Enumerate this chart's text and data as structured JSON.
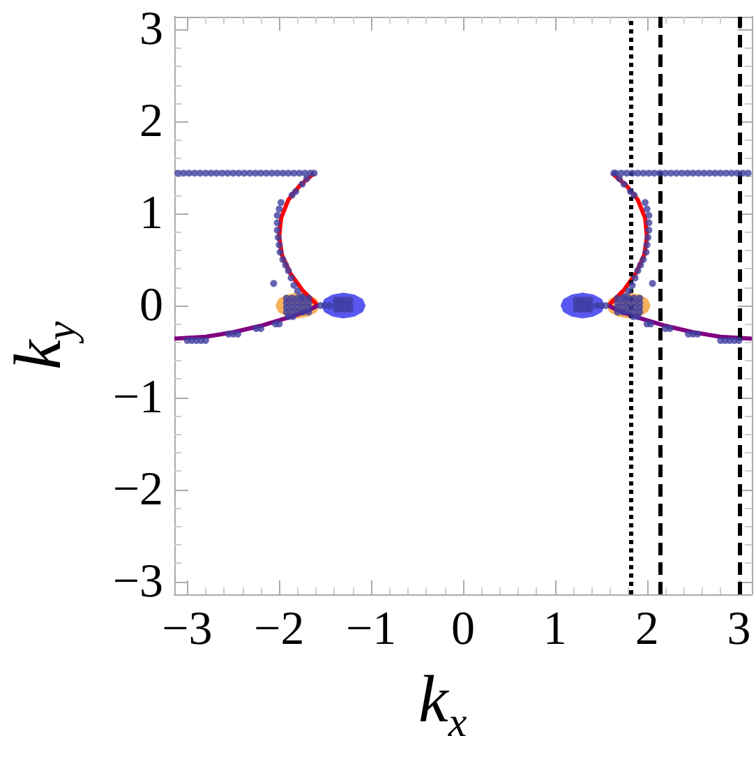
{
  "chart_data": {
    "type": "scatter",
    "xlabel": "k$_{x}$",
    "ylabel": "k$_{y}$",
    "xlim": [
      -3.14,
      3.14
    ],
    "ylim": [
      -3.14,
      3.14
    ],
    "xticks": [
      -3,
      -2,
      -1,
      0,
      1,
      2,
      3
    ],
    "yticks": [
      -3,
      -2,
      -1,
      0,
      1,
      2,
      3
    ],
    "series": [
      {
        "type": "area",
        "color": "#f5a94a",
        "x": [
          -1.56,
          -1.59,
          -1.68,
          -1.8,
          -1.92,
          -2.01,
          -2.04,
          -2.01,
          -1.92,
          -1.8,
          -1.68,
          -1.59,
          null,
          2.04,
          2.01,
          1.92,
          1.8,
          1.68,
          1.59,
          1.56,
          1.59,
          1.68,
          1.8,
          1.92,
          2.01
        ],
        "values": [
          0,
          0.07,
          0.12,
          0.14,
          0.12,
          0.07,
          0,
          -0.07,
          -0.12,
          -0.14,
          -0.12,
          -0.07,
          null,
          0,
          0.07,
          0.12,
          0.14,
          0.12,
          0.07,
          0,
          -0.07,
          -0.12,
          -0.14,
          -0.12,
          -0.07
        ]
      },
      {
        "type": "area",
        "color": "#4646f0",
        "x": [
          -1.06,
          -1.09,
          -1.18,
          -1.3,
          -1.42,
          -1.51,
          -1.54,
          -1.51,
          -1.42,
          -1.3,
          -1.18,
          -1.09,
          null,
          1.54,
          1.51,
          1.42,
          1.3,
          1.18,
          1.09,
          1.06,
          1.09,
          1.18,
          1.3,
          1.42,
          1.51
        ],
        "values": [
          0,
          0.07,
          0.12,
          0.14,
          0.12,
          0.07,
          0,
          -0.07,
          -0.12,
          -0.14,
          -0.12,
          -0.07,
          null,
          0,
          0.07,
          0.12,
          0.14,
          0.12,
          0.07,
          0,
          -0.07,
          -0.12,
          -0.14,
          -0.12,
          -0.07
        ]
      },
      {
        "type": "line",
        "color": "#ff0000",
        "x": [
          -1.62,
          -1.78,
          -1.9,
          -1.98,
          -2.0,
          -1.97,
          -1.88,
          -1.75,
          -1.58,
          null,
          1.58,
          1.75,
          1.88,
          1.97,
          2.0,
          1.98,
          1.9,
          1.78,
          1.62
        ],
        "values": [
          1.44,
          1.3,
          1.15,
          0.95,
          0.75,
          0.55,
          0.35,
          0.17,
          0,
          null,
          0,
          0.17,
          0.35,
          0.55,
          0.75,
          0.95,
          1.15,
          1.3,
          1.44
        ]
      },
      {
        "type": "line",
        "color": "#800080",
        "x": [
          -3.14,
          -2.8,
          -2.5,
          -2.2,
          -1.9,
          -1.7,
          -1.58,
          null,
          1.58,
          1.7,
          1.9,
          2.2,
          2.5,
          2.8,
          3.14
        ],
        "values": [
          -0.36,
          -0.34,
          -0.29,
          -0.22,
          -0.13,
          -0.06,
          0,
          null,
          0,
          -0.06,
          -0.13,
          -0.22,
          -0.29,
          -0.34,
          -0.36
        ]
      },
      {
        "marker": "circle",
        "color": "#3f3f9f",
        "x": [
          -3.1,
          -3.04,
          -2.98,
          -2.92,
          -2.86,
          -2.8,
          -2.74,
          -2.68,
          -2.62,
          -2.56,
          -2.5,
          -2.44,
          -2.38,
          -2.32,
          -2.26,
          -2.2,
          -2.14,
          -2.08,
          -2.02,
          -1.96,
          -1.9,
          -1.84,
          -1.78,
          -1.72,
          -1.66,
          -1.62,
          -1.7,
          -1.75,
          -1.82,
          -1.86,
          -1.98,
          -2.0,
          -2.02,
          -2.02,
          -2.02,
          -2.01,
          -2.0,
          -1.99,
          -1.96,
          -1.93,
          -1.9,
          -1.87,
          -1.84,
          -1.8,
          -1.76,
          -2.06,
          -1.92,
          -1.86,
          -1.8,
          -1.74,
          -1.68,
          -1.92,
          -1.86,
          -1.8,
          -1.74,
          -1.68,
          -1.92,
          -1.86,
          -1.8,
          -1.74,
          -1.68,
          -1.92,
          -1.86,
          -1.8,
          -1.74,
          -1.68,
          -1.38,
          -1.33,
          -1.28,
          -1.23,
          -1.38,
          -1.33,
          -1.28,
          -1.23,
          -1.38,
          -1.33,
          -1.28,
          -1.23,
          -1.55,
          -1.5,
          -1.45,
          -3.0,
          -2.95,
          -2.9,
          -2.85,
          -2.8,
          -2.55,
          -2.5,
          -2.45,
          -2.25,
          -2.2,
          -2.04,
          -2.0,
          -1.9,
          -1.85,
          1.66,
          1.72,
          1.78,
          1.84,
          1.9,
          1.96,
          2.02,
          2.08,
          2.14,
          2.2,
          2.26,
          2.32,
          2.38,
          2.44,
          2.5,
          2.56,
          2.62,
          2.68,
          2.74,
          2.8,
          2.86,
          2.92,
          2.98,
          3.04,
          3.1,
          1.64,
          1.7,
          1.75,
          1.82,
          1.86,
          1.98,
          2.0,
          2.02,
          2.02,
          2.02,
          2.01,
          2.0,
          1.99,
          1.96,
          1.93,
          1.9,
          1.87,
          1.84,
          1.8,
          1.76,
          2.06,
          1.68,
          1.74,
          1.8,
          1.86,
          1.92,
          1.68,
          1.74,
          1.8,
          1.86,
          1.92,
          1.68,
          1.74,
          1.8,
          1.86,
          1.92,
          1.68,
          1.74,
          1.8,
          1.86,
          1.92,
          1.23,
          1.28,
          1.33,
          1.38,
          1.23,
          1.28,
          1.33,
          1.38,
          1.23,
          1.28,
          1.33,
          1.38,
          1.45,
          1.5,
          1.55,
          1.85,
          1.9,
          2.0,
          2.04,
          2.2,
          2.25,
          2.45,
          2.5,
          2.55,
          2.8,
          2.85,
          2.9,
          2.95,
          3.0
        ],
        "values": [
          1.44,
          1.44,
          1.44,
          1.44,
          1.44,
          1.44,
          1.44,
          1.44,
          1.44,
          1.44,
          1.44,
          1.44,
          1.44,
          1.44,
          1.44,
          1.44,
          1.44,
          1.44,
          1.44,
          1.44,
          1.44,
          1.44,
          1.44,
          1.44,
          1.44,
          1.44,
          1.38,
          1.32,
          1.24,
          1.2,
          1.12,
          1.05,
          0.98,
          0.9,
          0.82,
          0.74,
          0.66,
          0.58,
          0.5,
          0.44,
          0.38,
          0.3,
          0.22,
          0.16,
          0.1,
          0.24,
          0.08,
          0.08,
          0.08,
          0.08,
          0.08,
          0.03,
          0.03,
          0.03,
          0.03,
          0.03,
          -0.02,
          -0.02,
          -0.02,
          -0.02,
          -0.02,
          -0.07,
          -0.07,
          -0.07,
          -0.07,
          -0.07,
          0.06,
          0.06,
          0.06,
          0.06,
          0.01,
          0.01,
          0.01,
          0.01,
          -0.04,
          -0.04,
          -0.04,
          -0.04,
          0,
          0,
          0,
          -0.38,
          -0.38,
          -0.38,
          -0.38,
          -0.38,
          -0.31,
          -0.31,
          -0.31,
          -0.25,
          -0.25,
          -0.2,
          -0.2,
          -0.12,
          -0.12,
          1.44,
          1.44,
          1.44,
          1.44,
          1.44,
          1.44,
          1.44,
          1.44,
          1.44,
          1.44,
          1.44,
          1.44,
          1.44,
          1.44,
          1.44,
          1.44,
          1.44,
          1.44,
          1.44,
          1.44,
          1.44,
          1.44,
          1.44,
          1.44,
          1.44,
          1.44,
          1.38,
          1.32,
          1.24,
          1.2,
          1.12,
          1.05,
          0.98,
          0.9,
          0.82,
          0.74,
          0.66,
          0.58,
          0.5,
          0.44,
          0.38,
          0.3,
          0.22,
          0.16,
          0.1,
          0.24,
          0.08,
          0.08,
          0.08,
          0.08,
          0.08,
          0.03,
          0.03,
          0.03,
          0.03,
          0.03,
          -0.02,
          -0.02,
          -0.02,
          -0.02,
          -0.02,
          -0.07,
          -0.07,
          -0.07,
          -0.07,
          -0.07,
          0.06,
          0.06,
          0.06,
          0.06,
          0.01,
          0.01,
          0.01,
          0.01,
          -0.04,
          -0.04,
          -0.04,
          -0.04,
          0,
          0,
          0,
          -0.12,
          -0.12,
          -0.2,
          -0.2,
          -0.25,
          -0.25,
          -0.31,
          -0.31,
          -0.31,
          -0.38,
          -0.38,
          -0.38,
          -0.38,
          -0.38
        ]
      }
    ],
    "ref_lines": [
      {
        "axis": "x",
        "value": 1.83,
        "color": "#000000",
        "line_style": "dotted"
      },
      {
        "axis": "x",
        "value": 2.15,
        "color": "#000000",
        "line_style": "dashed"
      },
      {
        "axis": "x",
        "value": 3.0,
        "color": "#000000",
        "line_style": "dashed"
      }
    ]
  }
}
